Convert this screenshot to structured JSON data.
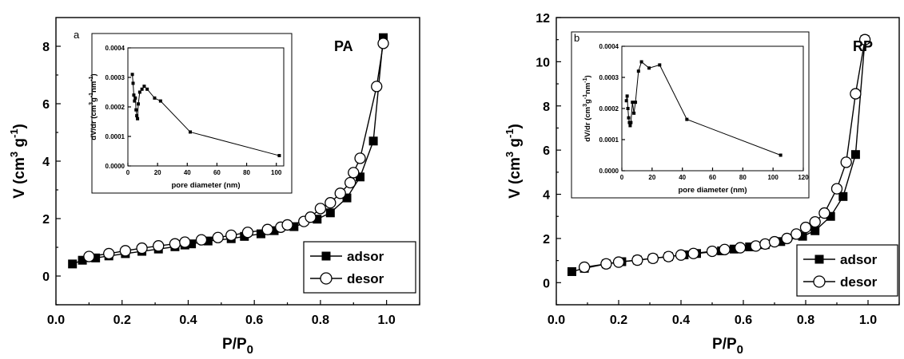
{
  "chart_data": [
    {
      "type": "scatter",
      "panel_label": "a",
      "sample_label": "PA",
      "xlabel_main": "P/P",
      "xlabel_sub": "0",
      "ylabel_main": "V (cm",
      "ylabel_sup1": "3",
      "ylabel_mid": " g",
      "ylabel_sup2": "-1",
      "ylabel_end": ")",
      "xlim": [
        0.0,
        1.1
      ],
      "ylim": [
        -1,
        9
      ],
      "xticks": [
        "0.0",
        "0.2",
        "0.4",
        "0.6",
        "0.8",
        "1.0"
      ],
      "yticks": [
        "0",
        "2",
        "4",
        "6",
        "8"
      ],
      "legend": [
        "adsor",
        "desor"
      ],
      "series": [
        {
          "name": "adsor",
          "marker": "filled-square",
          "x": [
            0.05,
            0.08,
            0.12,
            0.16,
            0.21,
            0.26,
            0.31,
            0.36,
            0.39,
            0.41,
            0.46,
            0.53,
            0.57,
            0.62,
            0.66,
            0.72,
            0.79,
            0.83,
            0.88,
            0.92,
            0.96,
            0.99
          ],
          "y": [
            0.42,
            0.55,
            0.63,
            0.7,
            0.78,
            0.86,
            0.94,
            1.02,
            1.08,
            1.12,
            1.22,
            1.3,
            1.38,
            1.47,
            1.58,
            1.72,
            1.98,
            2.2,
            2.72,
            3.45,
            4.7,
            8.3
          ]
        },
        {
          "name": "desor",
          "marker": "open-circle",
          "x": [
            0.1,
            0.16,
            0.21,
            0.26,
            0.31,
            0.36,
            0.39,
            0.44,
            0.49,
            0.53,
            0.58,
            0.64,
            0.68,
            0.7,
            0.75,
            0.77,
            0.8,
            0.83,
            0.86,
            0.89,
            0.9,
            0.92,
            0.97,
            0.99
          ],
          "y": [
            0.68,
            0.78,
            0.88,
            0.97,
            1.05,
            1.12,
            1.18,
            1.26,
            1.34,
            1.42,
            1.52,
            1.62,
            1.7,
            1.78,
            1.9,
            2.05,
            2.35,
            2.55,
            2.88,
            3.25,
            3.6,
            4.1,
            6.6,
            8.1
          ]
        }
      ],
      "inset": {
        "type": "line",
        "xlabel": "pore diameter (nm)",
        "ylabel_parts": [
          "dV/dr (cm",
          "3",
          "g",
          "-1",
          "nm",
          "-1",
          ")"
        ],
        "xlim": [
          0,
          105
        ],
        "ylim": [
          0,
          0.0004
        ],
        "xticks": [
          "0",
          "20",
          "40",
          "60",
          "80",
          "100"
        ],
        "yticks": [
          "0.0000",
          "0.0001",
          "0.0002",
          "0.0003",
          "0.0004"
        ],
        "x": [
          3.0,
          3.5,
          4.0,
          4.5,
          5.0,
          5.5,
          6.0,
          6.5,
          7.0,
          8.0,
          9.5,
          11,
          13,
          18,
          22,
          42,
          102
        ],
        "y": [
          0.00031,
          0.00028,
          0.00024,
          0.00022,
          0.00023,
          0.00019,
          0.00017,
          0.00016,
          0.00021,
          0.00025,
          0.00026,
          0.00027,
          0.00026,
          0.00023,
          0.00022,
          0.000115,
          3.5e-05
        ]
      }
    },
    {
      "type": "scatter",
      "panel_label": "b",
      "sample_label": "RP",
      "xlabel_main": "P/P",
      "xlabel_sub": "0",
      "ylabel_main": "V (cm",
      "ylabel_sup1": "3",
      "ylabel_mid": " g",
      "ylabel_sup2": "-1",
      "ylabel_end": ")",
      "xlim": [
        0.0,
        1.1
      ],
      "ylim": [
        -1,
        12
      ],
      "xticks": [
        "0.0",
        "0.2",
        "0.4",
        "0.6",
        "0.8",
        "1.0"
      ],
      "yticks": [
        "0",
        "2",
        "4",
        "6",
        "8",
        "10",
        "12"
      ],
      "legend": [
        "adsor",
        "desor"
      ],
      "series": [
        {
          "name": "adsor",
          "marker": "filled-square",
          "x": [
            0.05,
            0.09,
            0.16,
            0.21,
            0.26,
            0.31,
            0.36,
            0.41,
            0.45,
            0.53,
            0.57,
            0.62,
            0.67,
            0.72,
            0.79,
            0.83,
            0.88,
            0.92,
            0.96,
            0.99
          ],
          "y": [
            0.5,
            0.65,
            0.85,
            0.95,
            1.02,
            1.1,
            1.18,
            1.26,
            1.32,
            1.44,
            1.52,
            1.62,
            1.72,
            1.86,
            2.1,
            2.35,
            3.0,
            3.9,
            5.8,
            11.0
          ]
        },
        {
          "name": "desor",
          "marker": "open-circle",
          "x": [
            0.09,
            0.16,
            0.2,
            0.26,
            0.31,
            0.36,
            0.4,
            0.44,
            0.5,
            0.54,
            0.59,
            0.64,
            0.67,
            0.7,
            0.74,
            0.77,
            0.8,
            0.83,
            0.86,
            0.9,
            0.93,
            0.96,
            0.99
          ],
          "y": [
            0.7,
            0.85,
            0.93,
            1.02,
            1.1,
            1.18,
            1.25,
            1.32,
            1.42,
            1.5,
            1.58,
            1.66,
            1.75,
            1.85,
            2.0,
            2.2,
            2.5,
            2.75,
            3.15,
            4.25,
            5.45,
            8.55,
            11.0
          ]
        }
      ],
      "inset": {
        "type": "line",
        "xlabel": "pore diameter (nm)",
        "ylabel_parts": [
          "dV/dr (cm",
          "3",
          "g",
          "-1",
          "nm",
          "-1",
          ")"
        ],
        "xlim": [
          0,
          120
        ],
        "ylim": [
          0,
          0.0004
        ],
        "xticks": [
          "0",
          "20",
          "40",
          "60",
          "80",
          "100",
          "120"
        ],
        "yticks": [
          "0.0000",
          "0.0001",
          "0.0002",
          "0.0003",
          "0.0004"
        ],
        "x": [
          3.0,
          3.5,
          4.0,
          4.5,
          5.0,
          5.5,
          6.0,
          7.0,
          8.0,
          9.0,
          11,
          13,
          18,
          25,
          43,
          105
        ],
        "y": [
          0.000225,
          0.00024,
          0.0002,
          0.00017,
          0.000155,
          0.000145,
          0.000155,
          0.00022,
          0.000185,
          0.00022,
          0.00032,
          0.00035,
          0.00033,
          0.00034,
          0.000165,
          5e-05
        ]
      }
    }
  ],
  "colors": {
    "ink": "#000000",
    "background": "#ffffff"
  }
}
